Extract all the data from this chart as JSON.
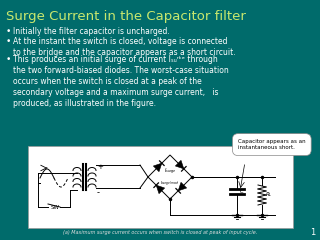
{
  "title": "Surge Current in the Capacitor filter",
  "title_color": "#c8e86e",
  "background_color": "#006b6b",
  "text_color": "#ffffff",
  "title_fontsize": 9.5,
  "body_fontsize": 5.5,
  "bullets": [
    "Initially the filter capacitor is uncharged.",
    "At the instant the switch is closed, voltage is connected\nto the bridge and the capacitor appears as a short circuit.",
    "This produces an initial surge of current Iₛᵤʳᵏᵉ through\nthe two forward-biased diodes. The worst-case situation\noccurs when the switch is closed at a peak of the\nsecondary voltage and a maximum surge current,   is\nproduced, as illustrated in the figure."
  ],
  "page_number": "1",
  "diagram_caption": "(a) Maximum surge current occurs when switch is closed at peak of input cycle.",
  "diagram_box_color": "#e8e0d0",
  "annotation_text": "Capacitor appears as an\ninstantaneous short."
}
